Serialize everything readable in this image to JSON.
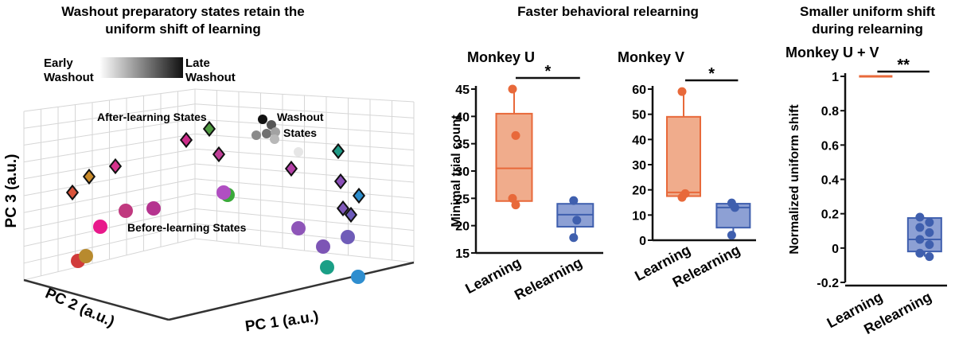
{
  "colors": {
    "learning": "#e8693a",
    "learning_fill": "#f0ac8c",
    "relearning": "#3f5fae",
    "relearning_fill": "#8da0d4",
    "grid": "#d6d6d6",
    "axis": "#333333"
  },
  "pca_panel": {
    "title_line1": "Washout preparatory states retain the",
    "title_line2": "uniform shift of learning",
    "gradient_left_line1": "Early",
    "gradient_left_line2": "Washout",
    "gradient_right_line1": "Late",
    "gradient_right_line2": "Washout",
    "label_after": "After-learning States",
    "label_washout_line1": "Washout",
    "label_washout_line2": "States",
    "label_before": "Before-learning States",
    "axis_pc1": "PC 1 (a.u.)",
    "axis_pc2": "PC 2 (a.u.)",
    "axis_pc3": "PC 3 (a.u.)",
    "before_points": [
      {
        "color": "#d13b3b"
      },
      {
        "color": "#b88a2e"
      },
      {
        "color": "#e8198b"
      },
      {
        "color": "#c0397f"
      },
      {
        "color": "#b5338f"
      },
      {
        "color": "#3aa93a"
      },
      {
        "color": "#b04ec2"
      },
      {
        "color": "#8e55b8"
      },
      {
        "color": "#7d55b5"
      },
      {
        "color": "#1a9f86"
      },
      {
        "color": "#6f5cb8"
      },
      {
        "color": "#2f8ecf"
      }
    ],
    "after_points": [
      {
        "color": "#d9533a"
      },
      {
        "color": "#c98a2a"
      },
      {
        "color": "#d6338c"
      },
      {
        "color": "#cc2c8a"
      },
      {
        "color": "#4f9b40"
      },
      {
        "color": "#c03f98"
      },
      {
        "color": "#b33fa7"
      },
      {
        "color": "#1f9a86"
      },
      {
        "color": "#8a4fb8"
      },
      {
        "color": "#2b8ccc"
      },
      {
        "color": "#7f58b8"
      },
      {
        "color": "#6c5abb"
      }
    ],
    "washout_points": [
      {
        "shade": "#111111"
      },
      {
        "shade": "#555555"
      },
      {
        "shade": "#6f6f6f"
      },
      {
        "shade": "#8a8a8a"
      },
      {
        "shade": "#a2a2a2"
      },
      {
        "shade": "#b8b8b8"
      },
      {
        "shade": "#e6e6e6"
      }
    ]
  },
  "middle_title": "Faster behavioral relearning",
  "right_title_line1": "Smaller uniform shift",
  "right_title_line2": "during relearning",
  "chart_data": [
    {
      "type": "box",
      "title": "Monkey U",
      "ylabel": "Minimal trial count",
      "ylim": [
        15,
        45
      ],
      "yticks": [
        15,
        20,
        25,
        30,
        35,
        40,
        45
      ],
      "categories": [
        "Learning",
        "Relearning"
      ],
      "significance": "*",
      "series": [
        {
          "name": "Learning",
          "q1": 24.5,
          "median": 30.5,
          "q3": 40.5,
          "whisker_low": 24.5,
          "whisker_high": 45,
          "points": [
            45,
            36.5,
            25,
            23.8
          ]
        },
        {
          "name": "Relearning",
          "q1": 19.8,
          "median": 22,
          "q3": 24,
          "whisker_low": 18,
          "whisker_high": 24.7,
          "points": [
            24.6,
            21,
            17.8
          ]
        }
      ]
    },
    {
      "type": "box",
      "title": "Monkey V",
      "ylabel": "",
      "ylim": [
        0,
        60
      ],
      "yticks": [
        0,
        10,
        20,
        30,
        40,
        50,
        60
      ],
      "categories": [
        "Learning",
        "Relearning"
      ],
      "significance": "*",
      "series": [
        {
          "name": "Learning",
          "q1": 17.5,
          "median": 19,
          "q3": 49,
          "whisker_low": 17,
          "whisker_high": 59,
          "points": [
            59,
            18.5,
            17
          ]
        },
        {
          "name": "Relearning",
          "q1": 5,
          "median": 13,
          "q3": 14.5,
          "whisker_low": 2,
          "whisker_high": 15,
          "points": [
            14.8,
            13,
            2
          ]
        }
      ]
    },
    {
      "type": "box",
      "title": "Monkey U + V",
      "ylabel": "Normalized uniform shift",
      "ylim": [
        -0.2,
        1
      ],
      "yticks": [
        "-0.2",
        "0",
        "0.2",
        "0.4",
        "0.6",
        "0.8",
        "1"
      ],
      "categories": [
        "Learning",
        "Relearning"
      ],
      "significance": "**",
      "series": [
        {
          "name": "Learning",
          "q1": 1,
          "median": 1,
          "q3": 1,
          "whisker_low": 1,
          "whisker_high": 1,
          "points": []
        },
        {
          "name": "Relearning",
          "q1": -0.02,
          "median": 0.05,
          "q3": 0.175,
          "whisker_low": -0.05,
          "whisker_high": 0.18,
          "points": [
            0.18,
            0.15,
            0.12,
            0.09,
            0.05,
            0.02,
            -0.03,
            -0.05
          ]
        }
      ]
    }
  ]
}
